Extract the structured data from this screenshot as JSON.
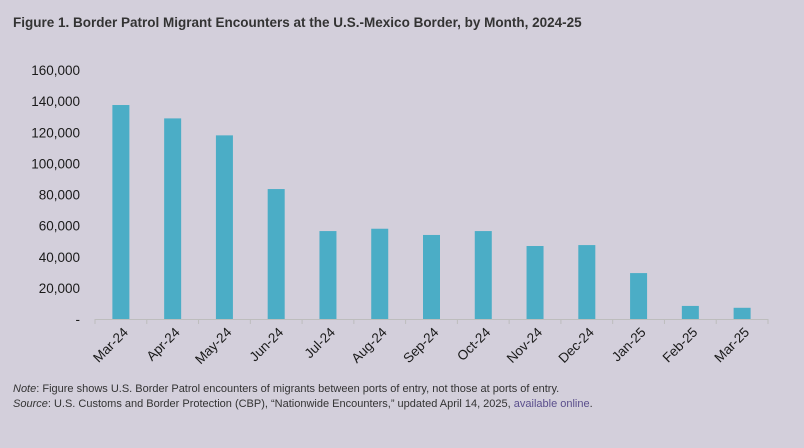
{
  "chart_data": {
    "type": "bar",
    "title": "Figure 1. Border Patrol Migrant Encounters at the U.S.-Mexico Border, by Month, 2024-25",
    "xlabel": "",
    "ylabel": "",
    "ylim": [
      0,
      160000
    ],
    "yticks": [
      0,
      20000,
      40000,
      60000,
      80000,
      100000,
      120000,
      140000,
      160000
    ],
    "ytick_labels": [
      "-",
      "20,000",
      "40,000",
      "60,000",
      "80,000",
      "100,000",
      "120,000",
      "140,000",
      "160,000"
    ],
    "categories": [
      "Mar-24",
      "Apr-24",
      "May-24",
      "Jun-24",
      "Jul-24",
      "Aug-24",
      "Sep-24",
      "Oct-24",
      "Nov-24",
      "Dec-24",
      "Jan-25",
      "Feb-25",
      "Mar-25"
    ],
    "values": [
      137500,
      128900,
      118000,
      83500,
      56500,
      58000,
      54000,
      56500,
      46900,
      47500,
      29500,
      8400,
      7200
    ],
    "grid": false,
    "colors": {
      "bar": "#4badc6",
      "axis": "#bdbdbd"
    }
  },
  "notes": {
    "note_label": "Note",
    "note_text": ": Figure shows U.S. Border Patrol encounters of migrants between ports of entry, not those at ports of entry.",
    "source_label": "Source",
    "source_text": ": U.S. Customs and Border Protection (CBP), “Nationwide Encounters,” updated April 14, 2025, ",
    "source_link": "available online",
    "source_end": "."
  }
}
